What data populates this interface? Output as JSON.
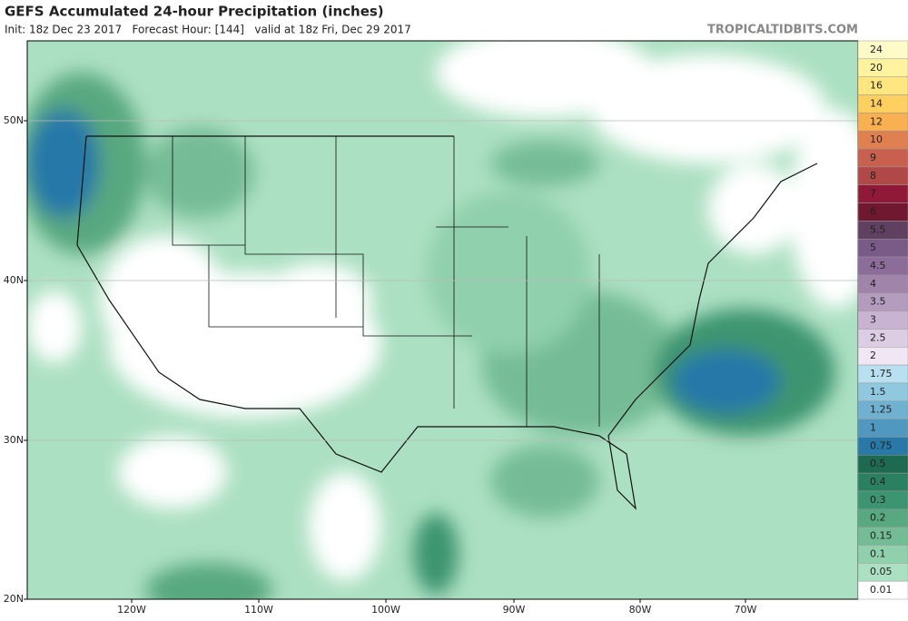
{
  "header": {
    "title": "GEFS Accumulated 24-hour Precipitation (inches)",
    "subtitle": "Init: 18z Dec 23 2017   Forecast Hour: [144]   valid at 18z Fri, Dec 29 2017",
    "site": "TROPICALTIDBITS.COM"
  },
  "axes": {
    "lat_labels": [
      "50N",
      "40N",
      "30N",
      "20N"
    ],
    "lon_labels": [
      "120W",
      "110W",
      "100W",
      "90W",
      "80W",
      "70W"
    ]
  },
  "colorbar": {
    "levels": [
      {
        "label": "24",
        "color": "#fffbc8"
      },
      {
        "label": "20",
        "color": "#fff3a0"
      },
      {
        "label": "16",
        "color": "#ffe680"
      },
      {
        "label": "14",
        "color": "#ffd060"
      },
      {
        "label": "12",
        "color": "#f8b050"
      },
      {
        "label": "10",
        "color": "#e08050"
      },
      {
        "label": "9",
        "color": "#c86050"
      },
      {
        "label": "8",
        "color": "#b04848"
      },
      {
        "label": "7",
        "color": "#901838"
      },
      {
        "label": "6",
        "color": "#701830"
      },
      {
        "label": "5.5",
        "color": "#604060"
      },
      {
        "label": "5",
        "color": "#7a5a86"
      },
      {
        "label": "4.5",
        "color": "#8c6c98"
      },
      {
        "label": "4",
        "color": "#a084aa"
      },
      {
        "label": "3.5",
        "color": "#b49cbe"
      },
      {
        "label": "3",
        "color": "#c8b4d2"
      },
      {
        "label": "2.5",
        "color": "#dccce4"
      },
      {
        "label": "2",
        "color": "#f0e6f4"
      },
      {
        "label": "1.75",
        "color": "#b8e0f0"
      },
      {
        "label": "1.5",
        "color": "#90c8e0"
      },
      {
        "label": "1.25",
        "color": "#70b0d0"
      },
      {
        "label": "1",
        "color": "#5098c0"
      },
      {
        "label": "0.75",
        "color": "#2878a8"
      },
      {
        "label": "0.5",
        "color": "#1e6a50"
      },
      {
        "label": "0.4",
        "color": "#2a8060"
      },
      {
        "label": "0.3",
        "color": "#3c9470"
      },
      {
        "label": "0.2",
        "color": "#58a880"
      },
      {
        "label": "0.15",
        "color": "#74bc96"
      },
      {
        "label": "0.1",
        "color": "#90d0ac"
      },
      {
        "label": "0.05",
        "color": "#ace0c2"
      },
      {
        "label": "0.01",
        "color": "#ffffff"
      }
    ]
  }
}
